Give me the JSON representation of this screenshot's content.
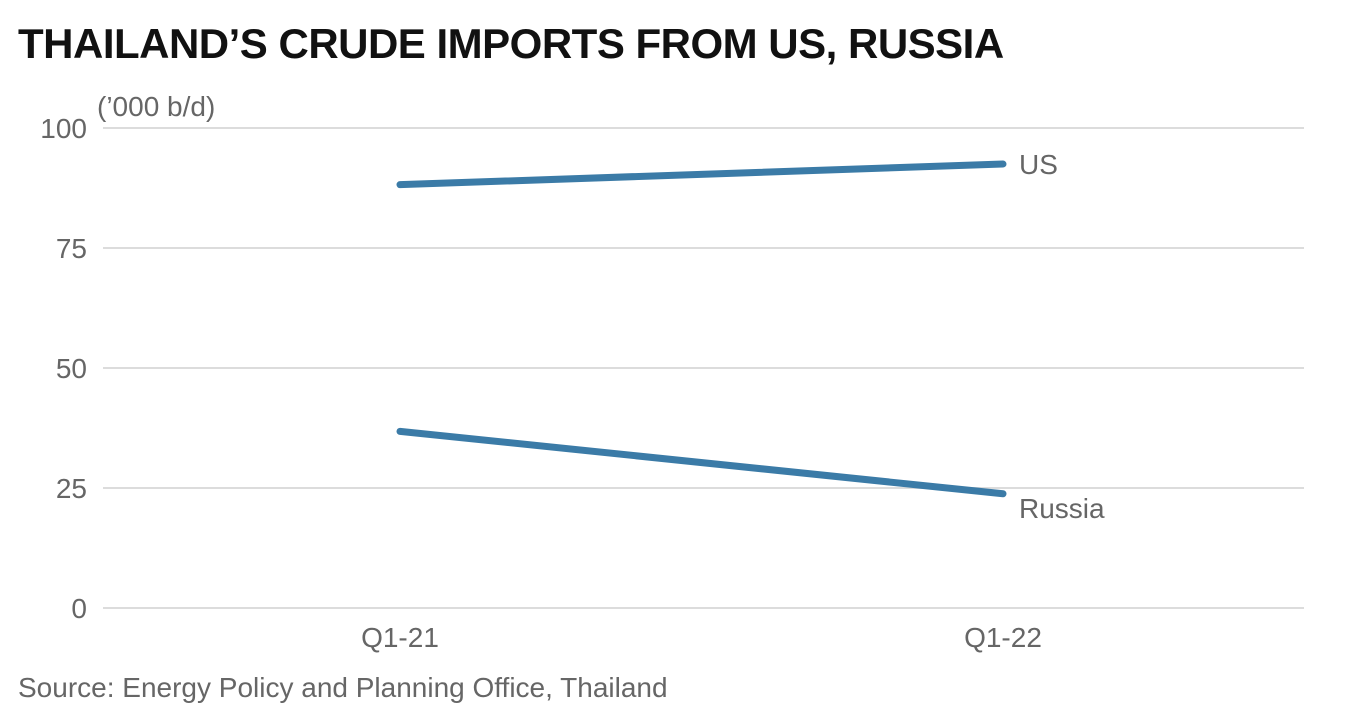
{
  "chart_data": {
    "type": "line",
    "title": "THAILAND’S CRUDE IMPORTS FROM US, RUSSIA",
    "unit_label": "(’000 b/d)",
    "categories": [
      "Q1-21",
      "Q1-22"
    ],
    "series": [
      {
        "name": "US",
        "values": [
          88.2,
          92.5
        ]
      },
      {
        "name": "Russia",
        "values": [
          36.8,
          23.8
        ]
      }
    ],
    "y_ticks": [
      0,
      25,
      50,
      75,
      100
    ],
    "ylim": [
      0,
      100
    ],
    "grid": true,
    "legend": "direct labels at line ends",
    "source": "Source: Energy Policy and Planning Office, Thailand"
  },
  "colors": {
    "series_line": "#3b7ba7",
    "gridline": "#dcdcdc",
    "axis_text": "#666666",
    "title_text": "#111111"
  }
}
